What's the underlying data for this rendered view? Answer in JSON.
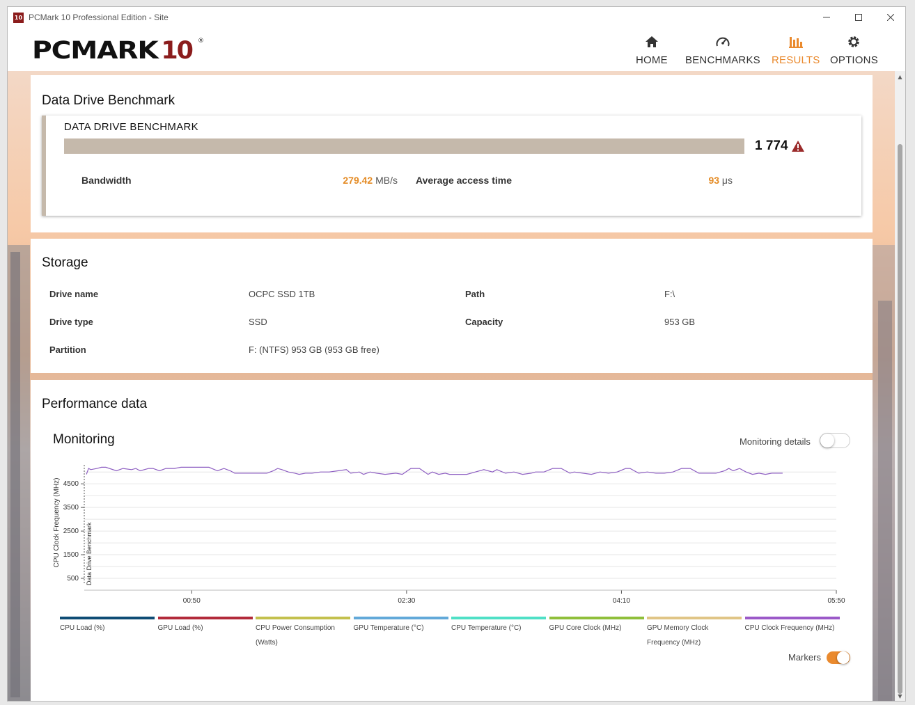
{
  "window": {
    "title": "PCMark 10 Professional Edition - Site",
    "app_icon": "10",
    "controls": [
      "minimize-icon",
      "maximize-icon",
      "close-icon"
    ]
  },
  "header": {
    "logo_text": "PCMARK",
    "logo_num": "10",
    "logo_reg": "®",
    "nav": [
      {
        "label": "HOME",
        "icon": "home-icon",
        "active": false
      },
      {
        "label": "BENCHMARKS",
        "icon": "gauge-icon",
        "active": false
      },
      {
        "label": "RESULTS",
        "icon": "bar-chart-icon",
        "active": true
      },
      {
        "label": "OPTIONS",
        "icon": "gear-icon",
        "active": false
      }
    ],
    "accent": "#ea8a2e"
  },
  "benchmark": {
    "section_title": "Data Drive Benchmark",
    "name": "DATA DRIVE BENCHMARK",
    "score": "1 774",
    "bar_color": "#c5b9ab",
    "warning_color": "#9b2b2b",
    "bandwidth_label": "Bandwidth",
    "bandwidth_value": "279.42",
    "bandwidth_unit": "MB/s",
    "access_label": "Average access time",
    "access_value": "93",
    "access_unit": "μs"
  },
  "storage": {
    "title": "Storage",
    "rows": [
      {
        "label": "Drive name",
        "value": "OCPC SSD 1TB",
        "label2": "Path",
        "value2": "F:\\"
      },
      {
        "label": "Drive type",
        "value": "SSD",
        "label2": "Capacity",
        "value2": "953 GB"
      },
      {
        "label": "Partition",
        "value": "F: (NTFS) 953 GB (953 GB free)"
      }
    ]
  },
  "performance": {
    "title": "Performance data",
    "monitoring_title": "Monitoring",
    "monitoring_details_label": "Monitoring details",
    "monitoring_details_on": false,
    "markers_label": "Markers",
    "markers_on": true
  },
  "chart_data": {
    "type": "line",
    "ylabel": "CPU Clock Frequency (MHz)",
    "marker_label": "Data Drive Benchmark",
    "yticks": [
      500,
      1500,
      2500,
      3500,
      4500
    ],
    "ylim": [
      0,
      5300
    ],
    "xticks": [
      "00:50",
      "02:30",
      "04:10",
      "05:50"
    ],
    "xlim_seconds": [
      0,
      350
    ],
    "xtick_seconds": [
      50,
      150,
      250,
      350
    ],
    "series": [
      {
        "color": "#8e5fc2",
        "x": [
          1,
          2,
          3,
          6,
          8,
          10,
          15,
          18,
          22,
          24,
          26,
          30,
          32,
          35,
          38,
          42,
          45,
          48,
          52,
          55,
          58,
          62,
          65,
          68,
          70,
          75,
          80,
          85,
          88,
          90,
          92,
          95,
          98,
          100,
          103,
          106,
          110,
          114,
          118,
          122,
          124,
          128,
          130,
          133,
          136,
          140,
          145,
          148,
          152,
          156,
          160,
          162,
          165,
          168,
          170,
          174,
          178,
          182,
          186,
          190,
          192,
          196,
          200,
          204,
          208,
          210,
          214,
          218,
          222,
          226,
          228,
          232,
          236,
          240,
          244,
          248,
          252,
          254,
          258,
          262,
          266,
          270,
          274,
          278,
          282,
          286,
          290,
          294,
          298,
          300,
          302,
          305,
          308,
          311,
          314,
          317,
          320,
          325
        ],
        "y": [
          4900,
          5150,
          5100,
          5150,
          5200,
          5200,
          5050,
          5150,
          5100,
          5150,
          5050,
          5150,
          5150,
          5050,
          5150,
          5150,
          5200,
          5200,
          5200,
          5200,
          5200,
          5050,
          5150,
          5050,
          4950,
          4950,
          4950,
          4950,
          5050,
          5150,
          5100,
          5000,
          4950,
          4900,
          4950,
          4950,
          5000,
          5000,
          5050,
          5100,
          4950,
          5000,
          4900,
          5000,
          4950,
          4900,
          4950,
          4900,
          5150,
          5150,
          4900,
          5000,
          4900,
          4950,
          4900,
          4900,
          4900,
          5000,
          5100,
          5000,
          5100,
          4950,
          5000,
          4900,
          4950,
          5000,
          5000,
          5150,
          5150,
          4950,
          5000,
          4950,
          4900,
          5000,
          4950,
          5000,
          5150,
          5150,
          4950,
          5000,
          4950,
          4950,
          5000,
          5150,
          5150,
          4950,
          4950,
          4950,
          5050,
          5150,
          5050,
          5150,
          5000,
          4900,
          4950,
          4900,
          4950,
          4950
        ]
      }
    ],
    "legend": [
      {
        "name": "CPU Load (%)",
        "color": "#0f4c75"
      },
      {
        "name": "GPU Load (%)",
        "color": "#b22a3a"
      },
      {
        "name": "CPU Power Consumption (Watts)",
        "color": "#c3c04d"
      },
      {
        "name": "GPU Temperature (°C)",
        "color": "#62a9d9"
      },
      {
        "name": "CPU Temperature (°C)",
        "color": "#4fe0c6"
      },
      {
        "name": "GPU Core Clock (MHz)",
        "color": "#8fbf3a"
      },
      {
        "name": "GPU Memory Clock Frequency (MHz)",
        "color": "#e0c586"
      },
      {
        "name": "CPU Clock Frequency (MHz)",
        "color": "#9b59c8"
      }
    ]
  }
}
